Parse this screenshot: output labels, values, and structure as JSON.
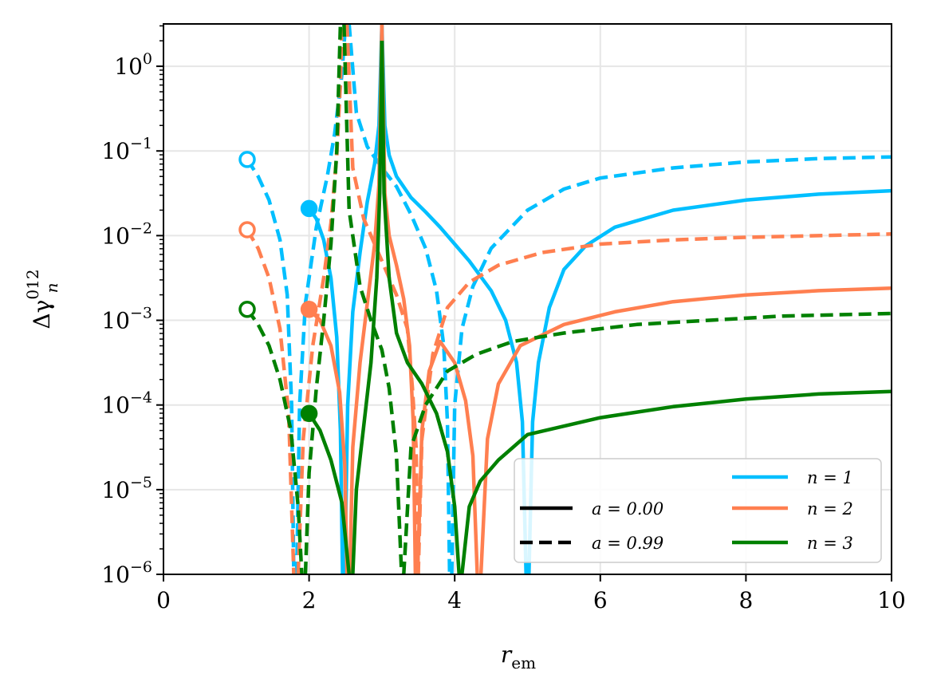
{
  "chart_data": {
    "type": "line",
    "title": "",
    "xlabel": "r",
    "xlabel_sub": "em",
    "ylabel": "Δγ",
    "ylabel_sup": "012",
    "ylabel_sub": "n",
    "xlim": [
      0,
      10
    ],
    "ylim_log10": [
      -6,
      0.5
    ],
    "yscale": "log",
    "grid": true,
    "x_ticks": [
      "0",
      "2",
      "4",
      "6",
      "8",
      "10"
    ],
    "y_tick_base": "10",
    "y_tick_exponents": [
      "0",
      "−1",
      "−2",
      "−3",
      "−4",
      "−5",
      "−6"
    ],
    "legend_location": "lower-right",
    "legend": {
      "style_entries": [
        {
          "label": "a = 0.00",
          "dash": "solid"
        },
        {
          "label": "a = 0.99",
          "dash": "dashed"
        }
      ],
      "color_entries": [
        {
          "label": "n = 1",
          "color": "#00bfff"
        },
        {
          "label": "n = 2",
          "color": "#ff7f50"
        },
        {
          "label": "n = 3",
          "color": "#008000"
        }
      ]
    },
    "series": [
      {
        "name": "n=1, a=0.00",
        "color": "#00bfff",
        "dash": "solid",
        "segments": [
          [
            [
              2.0,
              -1.68
            ],
            [
              2.1,
              -1.8
            ],
            [
              2.2,
              -2.05
            ],
            [
              2.3,
              -2.5
            ],
            [
              2.38,
              -3.2
            ],
            [
              2.43,
              -4.3
            ],
            [
              2.46,
              -6.0
            ]
          ],
          [
            [
              2.49,
              -6.0
            ],
            [
              2.53,
              -4.0
            ],
            [
              2.6,
              -2.9
            ],
            [
              2.7,
              -2.2
            ],
            [
              2.8,
              -1.6
            ],
            [
              2.9,
              -1.15
            ],
            [
              2.96,
              -0.7
            ],
            [
              3.0,
              0.5
            ]
          ],
          [
            [
              3.0,
              0.5
            ],
            [
              3.04,
              -0.7
            ],
            [
              3.1,
              -1.05
            ],
            [
              3.2,
              -1.3
            ],
            [
              3.4,
              -1.55
            ],
            [
              3.6,
              -1.72
            ],
            [
              3.8,
              -1.9
            ],
            [
              4.0,
              -2.1
            ],
            [
              4.2,
              -2.3
            ],
            [
              4.5,
              -2.65
            ],
            [
              4.7,
              -3.0
            ],
            [
              4.85,
              -3.5
            ],
            [
              4.93,
              -4.2
            ],
            [
              4.98,
              -6.0
            ]
          ],
          [
            [
              5.02,
              -6.0
            ],
            [
              5.07,
              -4.2
            ],
            [
              5.15,
              -3.5
            ],
            [
              5.3,
              -2.85
            ],
            [
              5.5,
              -2.4
            ],
            [
              5.8,
              -2.12
            ],
            [
              6.2,
              -1.9
            ],
            [
              7,
              -1.7
            ],
            [
              8,
              -1.58
            ],
            [
              9,
              -1.51
            ],
            [
              10,
              -1.47
            ]
          ]
        ]
      },
      {
        "name": "n=1, a=0.99",
        "color": "#00bfff",
        "dash": "dashed",
        "segments": [
          [
            [
              1.15,
              -1.1
            ],
            [
              1.3,
              -1.3
            ],
            [
              1.45,
              -1.58
            ],
            [
              1.6,
              -2.05
            ],
            [
              1.7,
              -2.7
            ],
            [
              1.76,
              -4.0
            ],
            [
              1.79,
              -6.0
            ]
          ],
          [
            [
              1.83,
              -6.0
            ],
            [
              1.87,
              -4.0
            ],
            [
              1.95,
              -2.8
            ],
            [
              2.1,
              -1.9
            ],
            [
              2.25,
              -1.3
            ],
            [
              2.35,
              -0.8
            ],
            [
              2.45,
              -0.1
            ],
            [
              2.5,
              0.5
            ]
          ],
          [
            [
              2.55,
              0.5
            ],
            [
              2.65,
              -0.55
            ],
            [
              2.8,
              -0.95
            ],
            [
              3.0,
              -1.2
            ],
            [
              3.2,
              -1.42
            ],
            [
              3.4,
              -1.75
            ],
            [
              3.6,
              -2.15
            ],
            [
              3.75,
              -2.65
            ],
            [
              3.85,
              -3.3
            ],
            [
              3.9,
              -4.2
            ],
            [
              3.93,
              -6.0
            ]
          ],
          [
            [
              3.96,
              -6.0
            ],
            [
              4.0,
              -4.0
            ],
            [
              4.1,
              -3.1
            ],
            [
              4.25,
              -2.6
            ],
            [
              4.5,
              -2.15
            ],
            [
              5.0,
              -1.7
            ],
            [
              5.5,
              -1.45
            ],
            [
              6,
              -1.32
            ],
            [
              7,
              -1.2
            ],
            [
              8,
              -1.13
            ],
            [
              9,
              -1.09
            ],
            [
              10,
              -1.07
            ]
          ]
        ]
      },
      {
        "name": "n=2, a=0.00",
        "color": "#ff7f50",
        "dash": "solid",
        "segments": [
          [
            [
              2.0,
              -2.87
            ],
            [
              2.15,
              -3.0
            ],
            [
              2.3,
              -3.3
            ],
            [
              2.42,
              -3.85
            ],
            [
              2.49,
              -4.7
            ],
            [
              2.52,
              -6.0
            ]
          ],
          [
            [
              2.56,
              -6.0
            ],
            [
              2.6,
              -4.5
            ],
            [
              2.7,
              -3.5
            ],
            [
              2.8,
              -2.8
            ],
            [
              2.9,
              -2.1
            ],
            [
              2.96,
              -1.4
            ],
            [
              3.0,
              0.5
            ]
          ],
          [
            [
              3.0,
              0.5
            ],
            [
              3.04,
              -1.5
            ],
            [
              3.1,
              -2.0
            ],
            [
              3.2,
              -2.35
            ],
            [
              3.3,
              -2.75
            ],
            [
              3.38,
              -3.3
            ],
            [
              3.43,
              -4.2
            ],
            [
              3.46,
              -6.0
            ]
          ],
          [
            [
              3.49,
              -6.0
            ],
            [
              3.55,
              -4.3
            ],
            [
              3.65,
              -3.6
            ],
            [
              3.8,
              -3.25
            ],
            [
              4.0,
              -3.5
            ],
            [
              4.15,
              -3.95
            ],
            [
              4.25,
              -4.6
            ],
            [
              4.31,
              -6.0
            ]
          ],
          [
            [
              4.36,
              -6.0
            ],
            [
              4.45,
              -4.4
            ],
            [
              4.6,
              -3.75
            ],
            [
              4.9,
              -3.3
            ],
            [
              5.5,
              -3.05
            ],
            [
              6.2,
              -2.9
            ],
            [
              7,
              -2.78
            ],
            [
              8,
              -2.7
            ],
            [
              9,
              -2.65
            ],
            [
              10,
              -2.62
            ]
          ]
        ]
      },
      {
        "name": "n=2, a=0.99",
        "color": "#ff7f50",
        "dash": "dashed",
        "segments": [
          [
            [
              1.15,
              -1.93
            ],
            [
              1.3,
              -2.15
            ],
            [
              1.45,
              -2.5
            ],
            [
              1.6,
              -3.1
            ],
            [
              1.72,
              -4.1
            ],
            [
              1.79,
              -6.0
            ]
          ],
          [
            [
              1.85,
              -6.0
            ],
            [
              1.92,
              -4.4
            ],
            [
              2.05,
              -3.3
            ],
            [
              2.2,
              -2.5
            ],
            [
              2.3,
              -1.85
            ],
            [
              2.38,
              -1.05
            ],
            [
              2.43,
              -0.2
            ],
            [
              2.45,
              0.5
            ]
          ],
          [
            [
              2.52,
              0.5
            ],
            [
              2.6,
              -1.2
            ],
            [
              2.75,
              -1.8
            ],
            [
              3.0,
              -2.3
            ],
            [
              3.2,
              -2.7
            ],
            [
              3.35,
              -3.1
            ],
            [
              3.42,
              -3.8
            ],
            [
              3.47,
              -4.5
            ],
            [
              3.5,
              -6.0
            ]
          ],
          [
            [
              3.5,
              -6.0
            ],
            [
              3.55,
              -4.4
            ],
            [
              3.7,
              -3.4
            ],
            [
              3.9,
              -2.85
            ],
            [
              4.2,
              -2.55
            ],
            [
              4.6,
              -2.35
            ],
            [
              5.2,
              -2.2
            ],
            [
              6,
              -2.1
            ],
            [
              7,
              -2.05
            ],
            [
              8,
              -2.02
            ],
            [
              9,
              -2.0
            ],
            [
              10,
              -1.98
            ]
          ]
        ]
      },
      {
        "name": "n=3, a=0.00",
        "color": "#008000",
        "dash": "solid",
        "segments": [
          [
            [
              2.0,
              -4.1
            ],
            [
              2.15,
              -4.3
            ],
            [
              2.3,
              -4.65
            ],
            [
              2.45,
              -5.15
            ],
            [
              2.55,
              -6.0
            ]
          ],
          [
            [
              2.6,
              -6.0
            ],
            [
              2.65,
              -5.0
            ],
            [
              2.75,
              -4.25
            ],
            [
              2.85,
              -3.5
            ],
            [
              2.93,
              -2.5
            ],
            [
              2.97,
              -1.5
            ],
            [
              3.0,
              0.3
            ]
          ],
          [
            [
              3.0,
              0.3
            ],
            [
              3.03,
              -1.5
            ],
            [
              3.1,
              -2.5
            ],
            [
              3.2,
              -3.15
            ],
            [
              3.35,
              -3.5
            ],
            [
              3.55,
              -3.75
            ],
            [
              3.75,
              -4.1
            ],
            [
              3.9,
              -4.55
            ],
            [
              4.0,
              -5.2
            ],
            [
              4.06,
              -6.0
            ]
          ],
          [
            [
              4.1,
              -6.0
            ],
            [
              4.2,
              -5.2
            ],
            [
              4.35,
              -4.9
            ],
            [
              4.6,
              -4.65
            ],
            [
              5.0,
              -4.35
            ],
            [
              6,
              -4.15
            ],
            [
              7,
              -4.02
            ],
            [
              8,
              -3.93
            ],
            [
              9,
              -3.87
            ],
            [
              10,
              -3.84
            ]
          ]
        ]
      },
      {
        "name": "n=3, a=0.99",
        "color": "#008000",
        "dash": "dashed",
        "segments": [
          [
            [
              1.15,
              -2.87
            ],
            [
              1.3,
              -3.05
            ],
            [
              1.45,
              -3.3
            ],
            [
              1.6,
              -3.7
            ],
            [
              1.75,
              -4.3
            ],
            [
              1.85,
              -5.2
            ],
            [
              1.9,
              -6.0
            ]
          ],
          [
            [
              1.95,
              -6.0
            ],
            [
              2.0,
              -4.8
            ],
            [
              2.1,
              -3.8
            ],
            [
              2.2,
              -3.0
            ],
            [
              2.3,
              -2.1
            ],
            [
              2.38,
              -1.0
            ],
            [
              2.43,
              0.5
            ]
          ],
          [
            [
              2.48,
              0.5
            ],
            [
              2.55,
              -1.7
            ],
            [
              2.7,
              -2.6
            ],
            [
              2.85,
              -3.0
            ],
            [
              3.0,
              -3.35
            ],
            [
              3.1,
              -3.8
            ],
            [
              3.2,
              -4.6
            ],
            [
              3.27,
              -6.0
            ]
          ],
          [
            [
              3.3,
              -6.0
            ],
            [
              3.4,
              -4.5
            ],
            [
              3.6,
              -4.0
            ],
            [
              3.9,
              -3.6
            ],
            [
              4.3,
              -3.4
            ],
            [
              4.8,
              -3.25
            ],
            [
              5.5,
              -3.15
            ],
            [
              6.5,
              -3.05
            ],
            [
              7.5,
              -3.0
            ],
            [
              8.5,
              -2.95
            ],
            [
              10,
              -2.92
            ]
          ]
        ]
      }
    ],
    "markers": [
      {
        "name": "n1-a099-start",
        "x": 1.15,
        "log10y": -1.1,
        "color": "#00bfff",
        "filled": false
      },
      {
        "name": "n2-a099-start",
        "x": 1.15,
        "log10y": -1.93,
        "color": "#ff7f50",
        "filled": false
      },
      {
        "name": "n3-a099-start",
        "x": 1.15,
        "log10y": -2.87,
        "color": "#008000",
        "filled": false
      },
      {
        "name": "n1-a000-start",
        "x": 2.0,
        "log10y": -1.68,
        "color": "#00bfff",
        "filled": true
      },
      {
        "name": "n2-a000-start",
        "x": 2.0,
        "log10y": -2.87,
        "color": "#ff7f50",
        "filled": true
      },
      {
        "name": "n3-a000-start",
        "x": 2.0,
        "log10y": -4.1,
        "color": "#008000",
        "filled": true
      }
    ]
  }
}
